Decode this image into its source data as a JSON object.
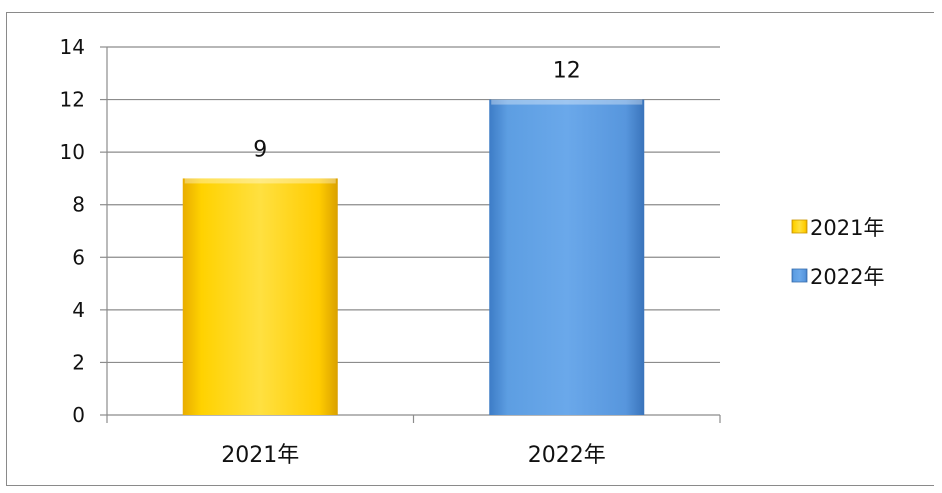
{
  "chart_data": {
    "type": "bar",
    "categories": [
      "2021年",
      "2022年"
    ],
    "values": [
      9,
      12
    ],
    "data_labels": [
      "9",
      "12"
    ],
    "ylim": [
      0,
      14
    ],
    "yticks": [
      "0",
      "2",
      "4",
      "6",
      "8",
      "10",
      "12",
      "14"
    ],
    "grid": true,
    "legend": {
      "position": "right",
      "entries": [
        {
          "label": "2021年",
          "color": "#ffcc00"
        },
        {
          "label": "2022年",
          "color": "#5b9be0"
        }
      ]
    },
    "colors": [
      "#ffcc00",
      "#5b9be0"
    ]
  }
}
